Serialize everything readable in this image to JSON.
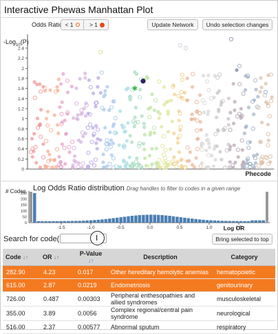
{
  "page_title": "Interactive Phewas Manhattan Plot",
  "controls": {
    "odds_ratio_label": "Odds Ratio:",
    "less_than_label": "< 1",
    "greater_than_label": "> 1",
    "update_network_label": "Update Network",
    "undo_selection_label": "Undo selection changes"
  },
  "icons": {
    "less_than": "hollow-orange-circle",
    "greater_than": "filled-red-circle"
  },
  "colors": {
    "selected_row": "#f47a20",
    "histogram_bar": "#4c7fb2",
    "highlight_star": "#3cb44b"
  },
  "manhattan": {
    "y_axis_label_prefix": "-Log",
    "y_axis_label_sub": "10",
    "y_axis_label_suffix": "(P)",
    "x_axis_label": "Phecode",
    "y_ticks": [
      "2.4",
      "2.2",
      "2",
      "1.8",
      "1.6",
      "1.4",
      "1.2",
      "1",
      "0.8",
      "0.6",
      "0.4",
      "0.2",
      "0"
    ]
  },
  "histogram": {
    "title": "Log Odds Ratio distribution",
    "subtitle": "Drag handles to filter to codes in a given range",
    "y_axis_label": "# Codes",
    "x_axis_label": "Log OR",
    "y_ticks": [
      "250",
      "200",
      "150",
      "100",
      "50",
      "0"
    ],
    "x_ticks": [
      "-1.5",
      "-1.0",
      "-0.5",
      "0.0",
      "0.5",
      "1.0",
      "1.5"
    ]
  },
  "search": {
    "label": "Search for code(s):",
    "value": "",
    "bring_to_top_label": "Bring selected to top"
  },
  "table": {
    "columns": [
      "Code",
      "OR",
      "P-Value",
      "Description",
      "Category"
    ],
    "rows": [
      {
        "code": "282.90",
        "or": "4.23",
        "p": "0.017",
        "desc": "Other hereditary hemolytic anemias",
        "cat": "hematopoietic",
        "selected": true
      },
      {
        "code": "615.00",
        "or": "2.87",
        "p": "0.0219",
        "desc": "Endometriosis",
        "cat": "genitourinary",
        "selected": true
      },
      {
        "code": "726.00",
        "or": "0.487",
        "p": "0.00303",
        "desc": "Peripheral enthesopathies and allied syndromes",
        "cat": "musculoskeletal",
        "selected": false
      },
      {
        "code": "355.00",
        "or": "3.89",
        "p": "0.0056",
        "desc": "Complex regional/central pain syndrome",
        "cat": "neurological",
        "selected": false
      },
      {
        "code": "516.00",
        "or": "2.37",
        "p": "0.00577",
        "desc": "Abnormal sputum",
        "cat": "respiratory",
        "selected": false
      }
    ]
  }
}
